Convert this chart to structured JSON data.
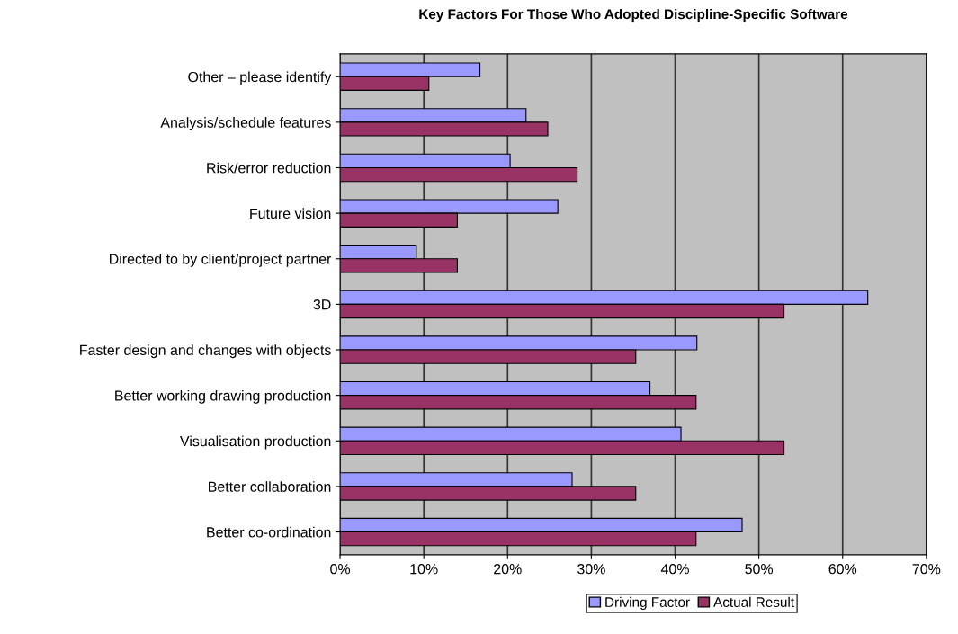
{
  "chart_data": {
    "type": "bar",
    "orientation": "horizontal",
    "title": "Key Factors For Those Who Adopted Discipline-Specific Software",
    "categories": [
      "Other – please identify",
      "Analysis/schedule features",
      "Risk/error reduction",
      "Future vision",
      "Directed to by client/project partner",
      "3D",
      "Faster design and changes with objects",
      "Better working drawing production",
      "Visualisation production",
      "Better collaboration",
      "Better co-ordination"
    ],
    "series": [
      {
        "name": "Driving Factor",
        "color": "#9999ff",
        "values": [
          16.7,
          22.2,
          20.3,
          26.0,
          9.1,
          63.0,
          42.6,
          37.0,
          40.7,
          27.7,
          48.0
        ]
      },
      {
        "name": "Actual Result",
        "color": "#993366",
        "values": [
          10.6,
          24.8,
          28.3,
          14.0,
          14.0,
          53.0,
          35.3,
          42.5,
          53.0,
          35.3,
          42.5
        ]
      }
    ],
    "xlim": [
      0,
      70
    ],
    "xticks": [
      {
        "value": 0,
        "label": "0%"
      },
      {
        "value": 10,
        "label": "10%"
      },
      {
        "value": 20,
        "label": "20%"
      },
      {
        "value": 30,
        "label": "30%"
      },
      {
        "value": 40,
        "label": "40%"
      },
      {
        "value": 50,
        "label": "50%"
      },
      {
        "value": 60,
        "label": "60%"
      },
      {
        "value": 70,
        "label": "70%"
      }
    ],
    "grid": "x",
    "legend": "bottom"
  }
}
